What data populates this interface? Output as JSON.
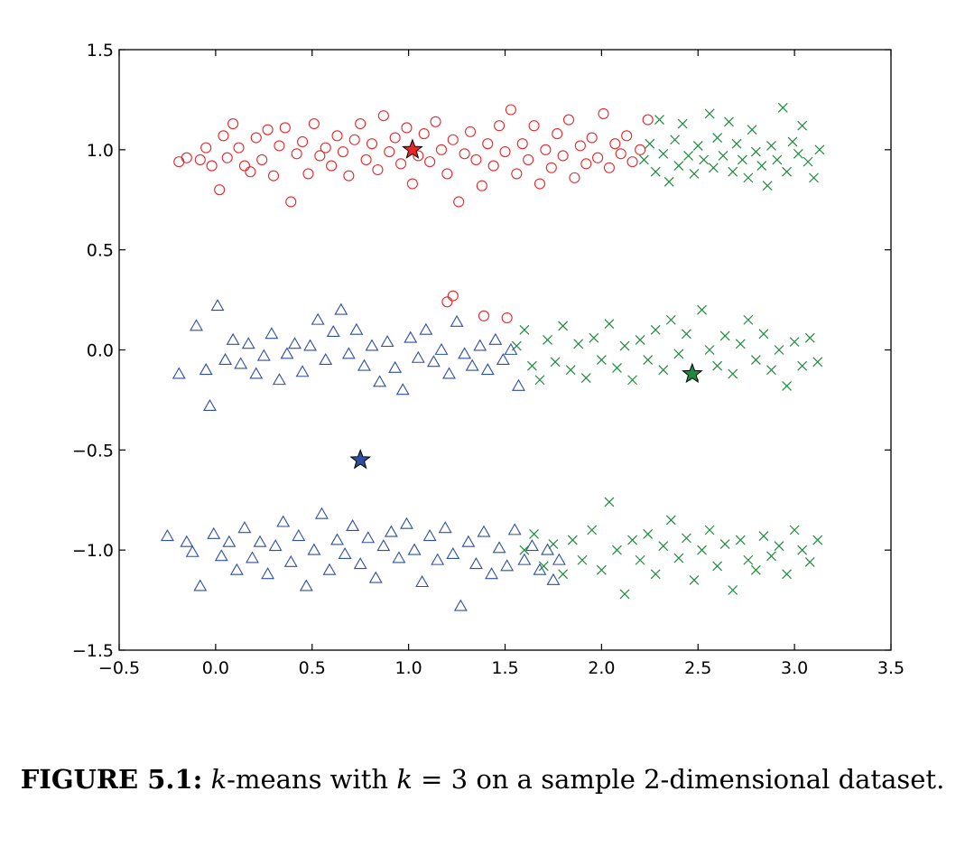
{
  "chart_data": {
    "type": "scatter",
    "xlim": [
      -0.5,
      3.5
    ],
    "ylim": [
      -1.5,
      1.5
    ],
    "x_ticks": [
      -0.5,
      0.0,
      0.5,
      1.0,
      1.5,
      2.0,
      2.5,
      3.0,
      3.5
    ],
    "x_tick_labels": [
      "−0.5",
      "0.0",
      "0.5",
      "1.0",
      "1.5",
      "2.0",
      "2.5",
      "3.0",
      "3.5"
    ],
    "y_ticks": [
      -1.5,
      -1.0,
      -0.5,
      0.0,
      0.5,
      1.0,
      1.5
    ],
    "y_tick_labels": [
      "−1.5",
      "−1.0",
      "−0.5",
      "0.0",
      "0.5",
      "1.0",
      "1.5"
    ],
    "grid": false,
    "series": [
      {
        "marker": "circle",
        "color": "#e8262a",
        "centroid": [
          1.02,
          1.0
        ],
        "points": [
          [
            -0.19,
            0.94
          ],
          [
            -0.15,
            0.96
          ],
          [
            -0.08,
            0.95
          ],
          [
            -0.05,
            1.01
          ],
          [
            -0.02,
            0.92
          ],
          [
            0.02,
            0.8
          ],
          [
            0.04,
            1.07
          ],
          [
            0.06,
            0.96
          ],
          [
            0.09,
            1.13
          ],
          [
            0.12,
            1.01
          ],
          [
            0.15,
            0.92
          ],
          [
            0.18,
            0.89
          ],
          [
            0.21,
            1.06
          ],
          [
            0.24,
            0.95
          ],
          [
            0.27,
            1.1
          ],
          [
            0.3,
            0.87
          ],
          [
            0.33,
            1.02
          ],
          [
            0.36,
            1.11
          ],
          [
            0.39,
            0.74
          ],
          [
            0.42,
            0.98
          ],
          [
            0.45,
            1.04
          ],
          [
            0.48,
            0.88
          ],
          [
            0.51,
            1.13
          ],
          [
            0.54,
            0.97
          ],
          [
            0.57,
            1.01
          ],
          [
            0.6,
            0.92
          ],
          [
            0.63,
            1.07
          ],
          [
            0.66,
            0.99
          ],
          [
            0.69,
            0.87
          ],
          [
            0.72,
            1.05
          ],
          [
            0.75,
            1.13
          ],
          [
            0.78,
            0.95
          ],
          [
            0.81,
            1.03
          ],
          [
            0.84,
            0.9
          ],
          [
            0.87,
            1.17
          ],
          [
            0.9,
            0.99
          ],
          [
            0.93,
            1.06
          ],
          [
            0.96,
            0.93
          ],
          [
            0.99,
            1.11
          ],
          [
            1.02,
            0.83
          ],
          [
            1.05,
            0.97
          ],
          [
            1.08,
            1.08
          ],
          [
            1.11,
            0.94
          ],
          [
            1.14,
            1.14
          ],
          [
            1.17,
            1.0
          ],
          [
            1.2,
            0.88
          ],
          [
            1.23,
            1.05
          ],
          [
            1.26,
            0.74
          ],
          [
            1.29,
            0.98
          ],
          [
            1.32,
            1.09
          ],
          [
            1.35,
            0.95
          ],
          [
            1.38,
            0.82
          ],
          [
            1.41,
            1.03
          ],
          [
            1.44,
            0.92
          ],
          [
            1.47,
            1.12
          ],
          [
            1.5,
            0.99
          ],
          [
            1.53,
            1.2
          ],
          [
            1.56,
            0.88
          ],
          [
            1.59,
            1.03
          ],
          [
            1.62,
            0.95
          ],
          [
            1.65,
            1.12
          ],
          [
            1.68,
            0.83
          ],
          [
            1.71,
            1.0
          ],
          [
            1.74,
            0.91
          ],
          [
            1.77,
            1.08
          ],
          [
            1.8,
            0.97
          ],
          [
            1.83,
            1.15
          ],
          [
            1.86,
            0.86
          ],
          [
            1.89,
            1.02
          ],
          [
            1.92,
            0.93
          ],
          [
            1.95,
            1.06
          ],
          [
            1.98,
            0.96
          ],
          [
            2.01,
            1.18
          ],
          [
            2.04,
            0.91
          ],
          [
            2.07,
            1.03
          ],
          [
            2.1,
            0.98
          ],
          [
            2.13,
            1.07
          ],
          [
            2.16,
            0.94
          ],
          [
            2.2,
            1.0
          ],
          [
            2.24,
            1.15
          ],
          [
            1.23,
            0.27
          ],
          [
            1.2,
            0.24
          ],
          [
            1.39,
            0.17
          ],
          [
            1.51,
            0.16
          ]
        ]
      },
      {
        "marker": "triangle",
        "color": "#2e4fa0",
        "centroid": [
          0.75,
          -0.55
        ],
        "points": [
          [
            -0.25,
            -0.93
          ],
          [
            -0.19,
            -0.12
          ],
          [
            -0.15,
            -0.96
          ],
          [
            -0.12,
            -1.01
          ],
          [
            -0.1,
            0.12
          ],
          [
            -0.08,
            -1.18
          ],
          [
            -0.05,
            -0.1
          ],
          [
            -0.03,
            -0.28
          ],
          [
            -0.01,
            -0.92
          ],
          [
            0.01,
            0.22
          ],
          [
            0.03,
            -1.03
          ],
          [
            0.05,
            -0.05
          ],
          [
            0.07,
            -0.96
          ],
          [
            0.09,
            0.05
          ],
          [
            0.11,
            -1.1
          ],
          [
            0.13,
            -0.07
          ],
          [
            0.15,
            -0.89
          ],
          [
            0.17,
            0.03
          ],
          [
            0.19,
            -1.04
          ],
          [
            0.21,
            -0.12
          ],
          [
            0.23,
            -0.96
          ],
          [
            0.25,
            -0.03
          ],
          [
            0.27,
            -1.12
          ],
          [
            0.29,
            0.08
          ],
          [
            0.31,
            -0.98
          ],
          [
            0.33,
            -0.15
          ],
          [
            0.35,
            -0.86
          ],
          [
            0.37,
            -0.02
          ],
          [
            0.39,
            -1.06
          ],
          [
            0.41,
            0.03
          ],
          [
            0.43,
            -0.93
          ],
          [
            0.45,
            -0.11
          ],
          [
            0.47,
            -1.18
          ],
          [
            0.49,
            0.02
          ],
          [
            0.51,
            -1.0
          ],
          [
            0.53,
            0.15
          ],
          [
            0.55,
            -0.82
          ],
          [
            0.57,
            -0.05
          ],
          [
            0.59,
            -1.1
          ],
          [
            0.61,
            0.09
          ],
          [
            0.63,
            -0.95
          ],
          [
            0.65,
            0.2
          ],
          [
            0.67,
            -1.02
          ],
          [
            0.69,
            -0.02
          ],
          [
            0.71,
            -0.88
          ],
          [
            0.73,
            0.1
          ],
          [
            0.75,
            -1.07
          ],
          [
            0.77,
            -0.08
          ],
          [
            0.79,
            -0.94
          ],
          [
            0.81,
            0.02
          ],
          [
            0.83,
            -1.14
          ],
          [
            0.85,
            -0.16
          ],
          [
            0.87,
            -0.98
          ],
          [
            0.89,
            0.04
          ],
          [
            0.91,
            -0.91
          ],
          [
            0.93,
            -0.09
          ],
          [
            0.95,
            -1.04
          ],
          [
            0.97,
            -0.2
          ],
          [
            0.99,
            -0.87
          ],
          [
            1.01,
            0.06
          ],
          [
            1.03,
            -1.0
          ],
          [
            1.05,
            -0.04
          ],
          [
            1.07,
            -1.16
          ],
          [
            1.09,
            0.1
          ],
          [
            1.11,
            -0.93
          ],
          [
            1.13,
            -0.06
          ],
          [
            1.15,
            -1.05
          ],
          [
            1.17,
            0.0
          ],
          [
            1.19,
            -0.89
          ],
          [
            1.21,
            -0.12
          ],
          [
            1.23,
            -1.02
          ],
          [
            1.25,
            0.14
          ],
          [
            1.27,
            -1.28
          ],
          [
            1.29,
            -0.02
          ],
          [
            1.31,
            -0.96
          ],
          [
            1.33,
            -0.08
          ],
          [
            1.35,
            -1.07
          ],
          [
            1.37,
            0.02
          ],
          [
            1.39,
            -0.91
          ],
          [
            1.41,
            -0.1
          ],
          [
            1.43,
            -1.12
          ],
          [
            1.45,
            0.05
          ],
          [
            1.47,
            -0.99
          ],
          [
            1.49,
            -0.05
          ],
          [
            1.51,
            -1.08
          ],
          [
            1.53,
            0.0
          ],
          [
            1.55,
            -0.9
          ],
          [
            1.57,
            -0.18
          ],
          [
            1.6,
            -1.05
          ],
          [
            1.64,
            -0.98
          ],
          [
            1.68,
            -1.1
          ],
          [
            1.72,
            -1.0
          ],
          [
            1.75,
            -1.15
          ],
          [
            1.78,
            -1.05
          ]
        ]
      },
      {
        "marker": "x",
        "color": "#1d8a3c",
        "centroid": [
          2.47,
          -0.12
        ],
        "points": [
          [
            2.22,
            0.95
          ],
          [
            2.25,
            1.03
          ],
          [
            2.28,
            0.89
          ],
          [
            2.3,
            1.15
          ],
          [
            2.32,
            0.98
          ],
          [
            2.35,
            0.84
          ],
          [
            2.38,
            1.05
          ],
          [
            2.4,
            0.92
          ],
          [
            2.42,
            1.13
          ],
          [
            2.45,
            0.97
          ],
          [
            2.48,
            0.88
          ],
          [
            2.5,
            1.02
          ],
          [
            2.53,
            0.95
          ],
          [
            2.56,
            1.18
          ],
          [
            2.58,
            0.91
          ],
          [
            2.6,
            1.06
          ],
          [
            2.63,
            0.97
          ],
          [
            2.66,
            1.14
          ],
          [
            2.68,
            0.89
          ],
          [
            2.7,
            1.03
          ],
          [
            2.73,
            0.95
          ],
          [
            2.76,
            0.86
          ],
          [
            2.78,
            1.1
          ],
          [
            2.8,
            0.99
          ],
          [
            2.83,
            0.92
          ],
          [
            2.86,
            0.82
          ],
          [
            2.88,
            1.02
          ],
          [
            2.91,
            0.95
          ],
          [
            2.94,
            1.21
          ],
          [
            2.96,
            0.89
          ],
          [
            2.99,
            1.04
          ],
          [
            3.02,
            0.98
          ],
          [
            3.04,
            1.12
          ],
          [
            3.07,
            0.94
          ],
          [
            3.1,
            0.86
          ],
          [
            3.13,
            1.0
          ],
          [
            1.56,
            0.02
          ],
          [
            1.6,
            0.1
          ],
          [
            1.64,
            -0.08
          ],
          [
            1.68,
            -0.15
          ],
          [
            1.72,
            0.05
          ],
          [
            1.76,
            -0.06
          ],
          [
            1.8,
            0.12
          ],
          [
            1.84,
            -0.1
          ],
          [
            1.88,
            0.03
          ],
          [
            1.92,
            -0.14
          ],
          [
            1.96,
            0.06
          ],
          [
            2.0,
            -0.05
          ],
          [
            2.04,
            0.13
          ],
          [
            2.08,
            -0.09
          ],
          [
            2.12,
            0.02
          ],
          [
            2.16,
            -0.15
          ],
          [
            2.2,
            0.05
          ],
          [
            2.24,
            -0.05
          ],
          [
            2.28,
            0.1
          ],
          [
            2.32,
            -0.1
          ],
          [
            2.36,
            0.15
          ],
          [
            2.4,
            -0.02
          ],
          [
            2.44,
            0.08
          ],
          [
            2.48,
            -0.13
          ],
          [
            2.52,
            0.2
          ],
          [
            2.56,
            0.0
          ],
          [
            2.6,
            -0.08
          ],
          [
            2.64,
            0.07
          ],
          [
            2.68,
            -0.12
          ],
          [
            2.72,
            0.03
          ],
          [
            2.76,
            0.15
          ],
          [
            2.8,
            -0.05
          ],
          [
            2.84,
            0.08
          ],
          [
            2.88,
            -0.1
          ],
          [
            2.92,
            0.0
          ],
          [
            2.96,
            -0.18
          ],
          [
            3.0,
            0.04
          ],
          [
            3.04,
            -0.08
          ],
          [
            3.08,
            0.06
          ],
          [
            3.12,
            -0.06
          ],
          [
            1.6,
            -1.0
          ],
          [
            1.65,
            -0.92
          ],
          [
            1.7,
            -1.08
          ],
          [
            1.75,
            -0.97
          ],
          [
            1.8,
            -1.12
          ],
          [
            1.85,
            -0.95
          ],
          [
            1.9,
            -1.05
          ],
          [
            1.95,
            -0.9
          ],
          [
            2.0,
            -1.1
          ],
          [
            2.04,
            -0.76
          ],
          [
            2.08,
            -1.0
          ],
          [
            2.12,
            -1.22
          ],
          [
            2.16,
            -0.95
          ],
          [
            2.2,
            -1.05
          ],
          [
            2.24,
            -0.92
          ],
          [
            2.28,
            -1.12
          ],
          [
            2.32,
            -0.98
          ],
          [
            2.36,
            -0.85
          ],
          [
            2.4,
            -1.04
          ],
          [
            2.44,
            -0.94
          ],
          [
            2.48,
            -1.15
          ],
          [
            2.52,
            -1.0
          ],
          [
            2.56,
            -0.9
          ],
          [
            2.6,
            -1.08
          ],
          [
            2.64,
            -0.97
          ],
          [
            2.68,
            -1.2
          ],
          [
            2.72,
            -0.95
          ],
          [
            2.76,
            -1.05
          ],
          [
            2.8,
            -1.1
          ],
          [
            2.84,
            -0.93
          ],
          [
            2.88,
            -1.03
          ],
          [
            2.92,
            -0.98
          ],
          [
            2.96,
            -1.12
          ],
          [
            3.0,
            -0.9
          ],
          [
            3.04,
            -1.0
          ],
          [
            3.08,
            -1.06
          ],
          [
            3.12,
            -0.95
          ]
        ]
      }
    ]
  },
  "caption": {
    "label": "FIGURE 5.1:",
    "italic_k": "k",
    "text_1": "-means with ",
    "italic_k2": "k",
    "text_2": " = 3 on a sample 2-dimensional dataset."
  }
}
